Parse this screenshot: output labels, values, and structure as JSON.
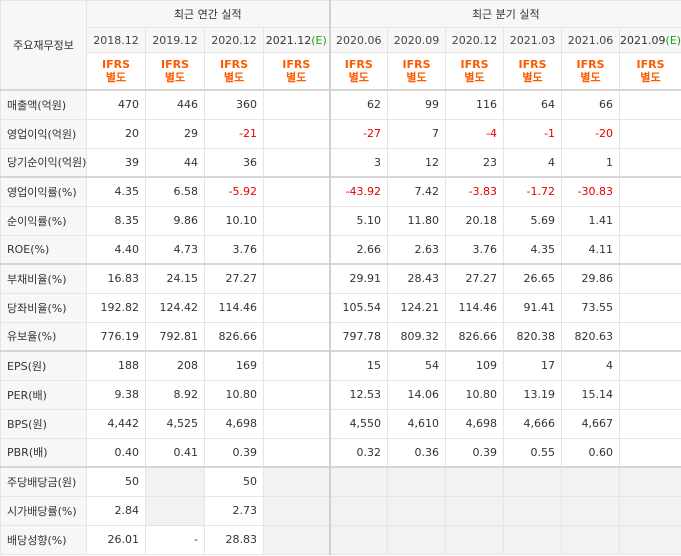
{
  "header": {
    "corner_label": "주요재무정보",
    "annual_group": "최근 연간 실적",
    "quarter_group": "최근 분기 실적",
    "annual_dates": [
      "2018.12",
      "2019.12",
      "2020.12",
      "2021.12"
    ],
    "annual_est_mark": "(E)",
    "quarter_dates": [
      "2020.06",
      "2020.09",
      "2020.12",
      "2021.03",
      "2021.06",
      "2021.09"
    ],
    "quarter_est_mark": "(E)",
    "ifrs_top": "IFRS",
    "ifrs_bottom": "별도"
  },
  "rows": [
    {
      "label": "매출액(억원)",
      "annual": [
        "470",
        "446",
        "360",
        ""
      ],
      "quarter": [
        "62",
        "99",
        "116",
        "64",
        "66",
        ""
      ]
    },
    {
      "label": "영업이익(억원)",
      "annual": [
        "20",
        "29",
        "-21",
        ""
      ],
      "quarter": [
        "-27",
        "7",
        "-4",
        "-1",
        "-20",
        ""
      ]
    },
    {
      "label": "당기순이익(억원)",
      "annual": [
        "39",
        "44",
        "36",
        ""
      ],
      "quarter": [
        "3",
        "12",
        "23",
        "4",
        "1",
        ""
      ]
    },
    {
      "label": "영업이익률(%)",
      "annual": [
        "4.35",
        "6.58",
        "-5.92",
        ""
      ],
      "quarter": [
        "-43.92",
        "7.42",
        "-3.83",
        "-1.72",
        "-30.83",
        ""
      ]
    },
    {
      "label": "순이익률(%)",
      "annual": [
        "8.35",
        "9.86",
        "10.10",
        ""
      ],
      "quarter": [
        "5.10",
        "11.80",
        "20.18",
        "5.69",
        "1.41",
        ""
      ]
    },
    {
      "label": "ROE(%)",
      "annual": [
        "4.40",
        "4.73",
        "3.76",
        ""
      ],
      "quarter": [
        "2.66",
        "2.63",
        "3.76",
        "4.35",
        "4.11",
        ""
      ]
    },
    {
      "label": "부채비율(%)",
      "annual": [
        "16.83",
        "24.15",
        "27.27",
        ""
      ],
      "quarter": [
        "29.91",
        "28.43",
        "27.27",
        "26.65",
        "29.86",
        ""
      ]
    },
    {
      "label": "당좌비율(%)",
      "annual": [
        "192.82",
        "124.42",
        "114.46",
        ""
      ],
      "quarter": [
        "105.54",
        "124.21",
        "114.46",
        "91.41",
        "73.55",
        ""
      ]
    },
    {
      "label": "유보율(%)",
      "annual": [
        "776.19",
        "792.81",
        "826.66",
        ""
      ],
      "quarter": [
        "797.78",
        "809.32",
        "826.66",
        "820.38",
        "820.63",
        ""
      ]
    },
    {
      "label": "EPS(원)",
      "annual": [
        "188",
        "208",
        "169",
        ""
      ],
      "quarter": [
        "15",
        "54",
        "109",
        "17",
        "4",
        ""
      ]
    },
    {
      "label": "PER(배)",
      "annual": [
        "9.38",
        "8.92",
        "10.80",
        ""
      ],
      "quarter": [
        "12.53",
        "14.06",
        "10.80",
        "13.19",
        "15.14",
        ""
      ]
    },
    {
      "label": "BPS(원)",
      "annual": [
        "4,442",
        "4,525",
        "4,698",
        ""
      ],
      "quarter": [
        "4,550",
        "4,610",
        "4,698",
        "4,666",
        "4,667",
        ""
      ]
    },
    {
      "label": "PBR(배)",
      "annual": [
        "0.40",
        "0.41",
        "0.39",
        ""
      ],
      "quarter": [
        "0.32",
        "0.36",
        "0.39",
        "0.55",
        "0.60",
        ""
      ]
    },
    {
      "label": "주당배당금(원)",
      "annual": [
        "50",
        "",
        "50",
        ""
      ],
      "quarter": [
        "",
        "",
        "",
        "",
        "",
        ""
      ]
    },
    {
      "label": "시가배당률(%)",
      "annual": [
        "2.84",
        "",
        "2.73",
        ""
      ],
      "quarter": [
        "",
        "",
        "",
        "",
        "",
        ""
      ]
    },
    {
      "label": "배당성향(%)",
      "annual": [
        "26.01",
        "-",
        "28.83",
        ""
      ],
      "quarter": [
        "",
        "",
        "",
        "",
        "",
        ""
      ]
    }
  ],
  "greyed_annual": {
    "13": [
      1,
      3
    ],
    "14": [
      1,
      3
    ],
    "15": [
      3
    ]
  },
  "greyed_quarter_rows": [
    13,
    14,
    15
  ],
  "group_starts": [
    0,
    3,
    6,
    9,
    13
  ]
}
